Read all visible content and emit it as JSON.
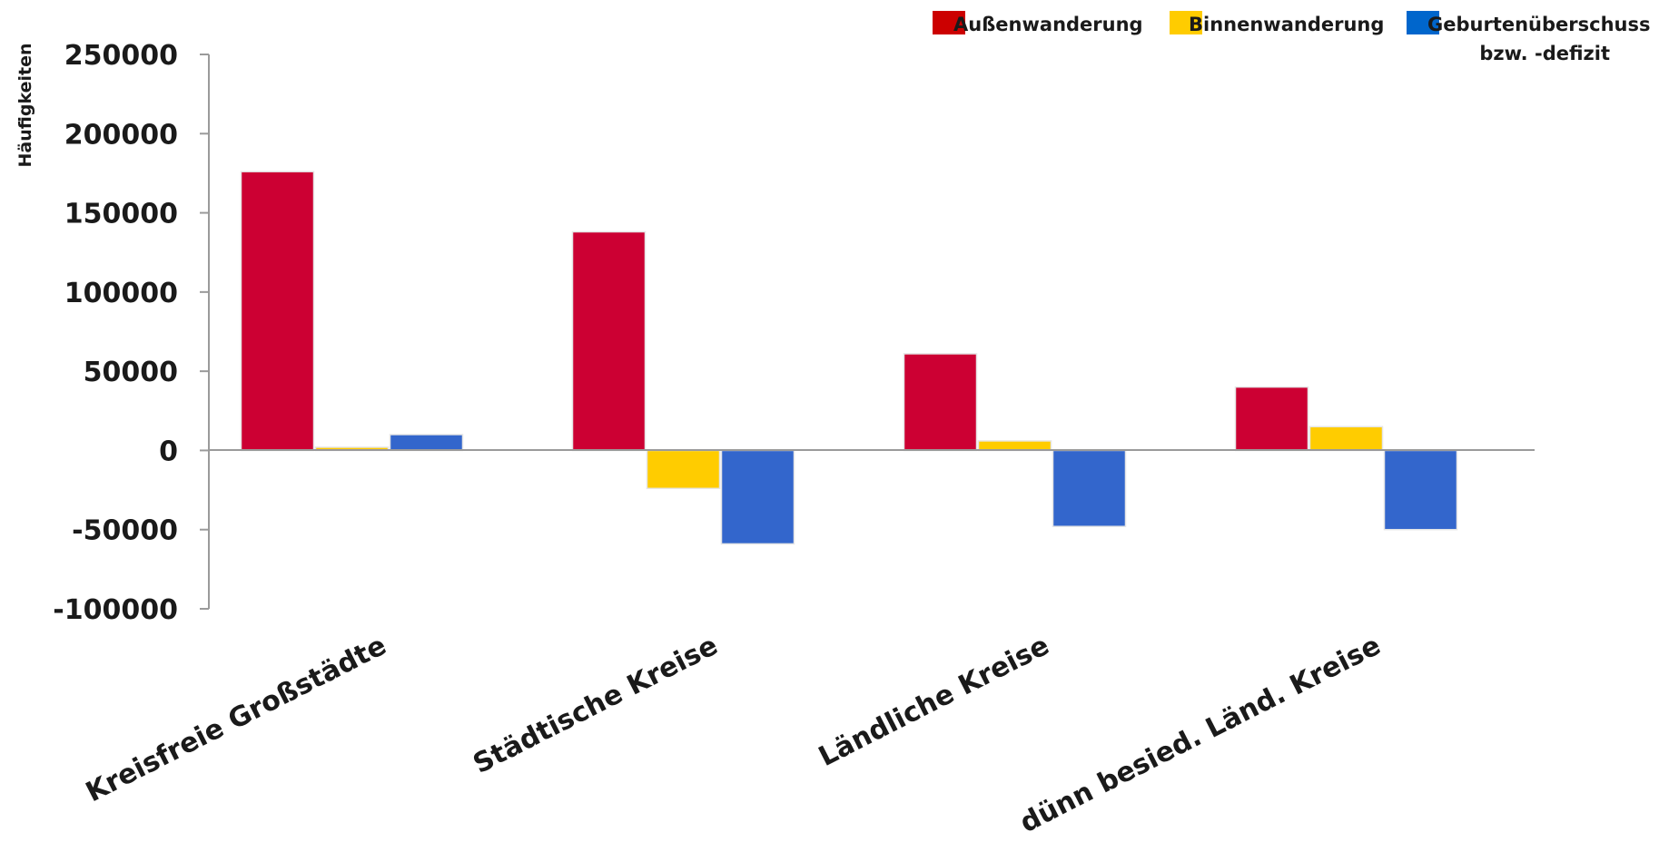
{
  "chart_data": {
    "type": "bar",
    "ylabel": "Häufigkeiten",
    "xlabel": "",
    "title": "",
    "ylim": [
      -100000,
      250000
    ],
    "yticks": [
      250000,
      200000,
      150000,
      100000,
      50000,
      0,
      -50000,
      -100000
    ],
    "categories": [
      "Kreisfreie Großstädte",
      "Städtische Kreise",
      "Ländliche Kreise",
      "dünn besied. Länd. Kreise"
    ],
    "series": [
      {
        "name": "Außenwanderung",
        "color": "#CC0033",
        "values": [
          176000,
          138000,
          61000,
          40000
        ]
      },
      {
        "name": "Binnenwanderung",
        "color": "#FFCC00",
        "values": [
          2000,
          -24000,
          6000,
          15000
        ]
      },
      {
        "name": "Geburtenüberschuss bzw. -defizit",
        "color": "#3366CC",
        "values": [
          10000,
          -59000,
          -48000,
          -50000
        ]
      }
    ],
    "legend": {
      "placement": "top-right",
      "swatch_colors": [
        "#CC0000",
        "#FFCC00",
        "#0066CC"
      ],
      "items": [
        "Außenwanderung",
        "Binnenwanderung",
        "Geburtenüberschuss"
      ],
      "continuation": "bzw. -defizit"
    },
    "grid": false
  }
}
